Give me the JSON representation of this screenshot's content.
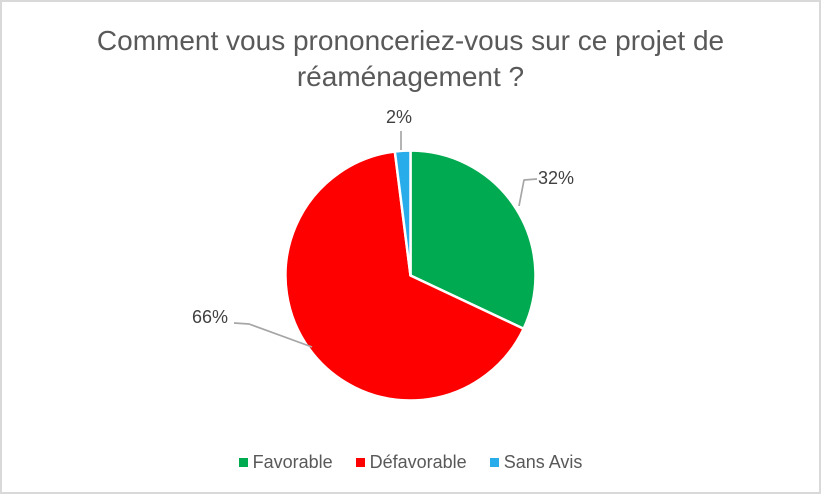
{
  "chart_data": {
    "type": "pie",
    "title": "Comment vous prononceriez-vous sur ce projet de réaménagement ?",
    "categories": [
      "Favorable",
      "Défavorable",
      "Sans Avis"
    ],
    "values": [
      32,
      66,
      2
    ],
    "labels": [
      "32%",
      "66%",
      "2%"
    ],
    "colors": [
      "#00AA50",
      "#FF0000",
      "#29ADEA"
    ],
    "legend_position": "bottom",
    "start_angle_deg": 0,
    "direction": "clockwise",
    "data_labels": "percent-outside-with-leader-lines"
  },
  "styles": {
    "background": "#FFFFFF",
    "border_color": "#D9D9D9",
    "title_color": "#595959",
    "label_color": "#404040",
    "legend_text_color": "#595959",
    "leader_line_color": "#A6A6A6",
    "slice_separator_color": "#FFFFFF"
  }
}
